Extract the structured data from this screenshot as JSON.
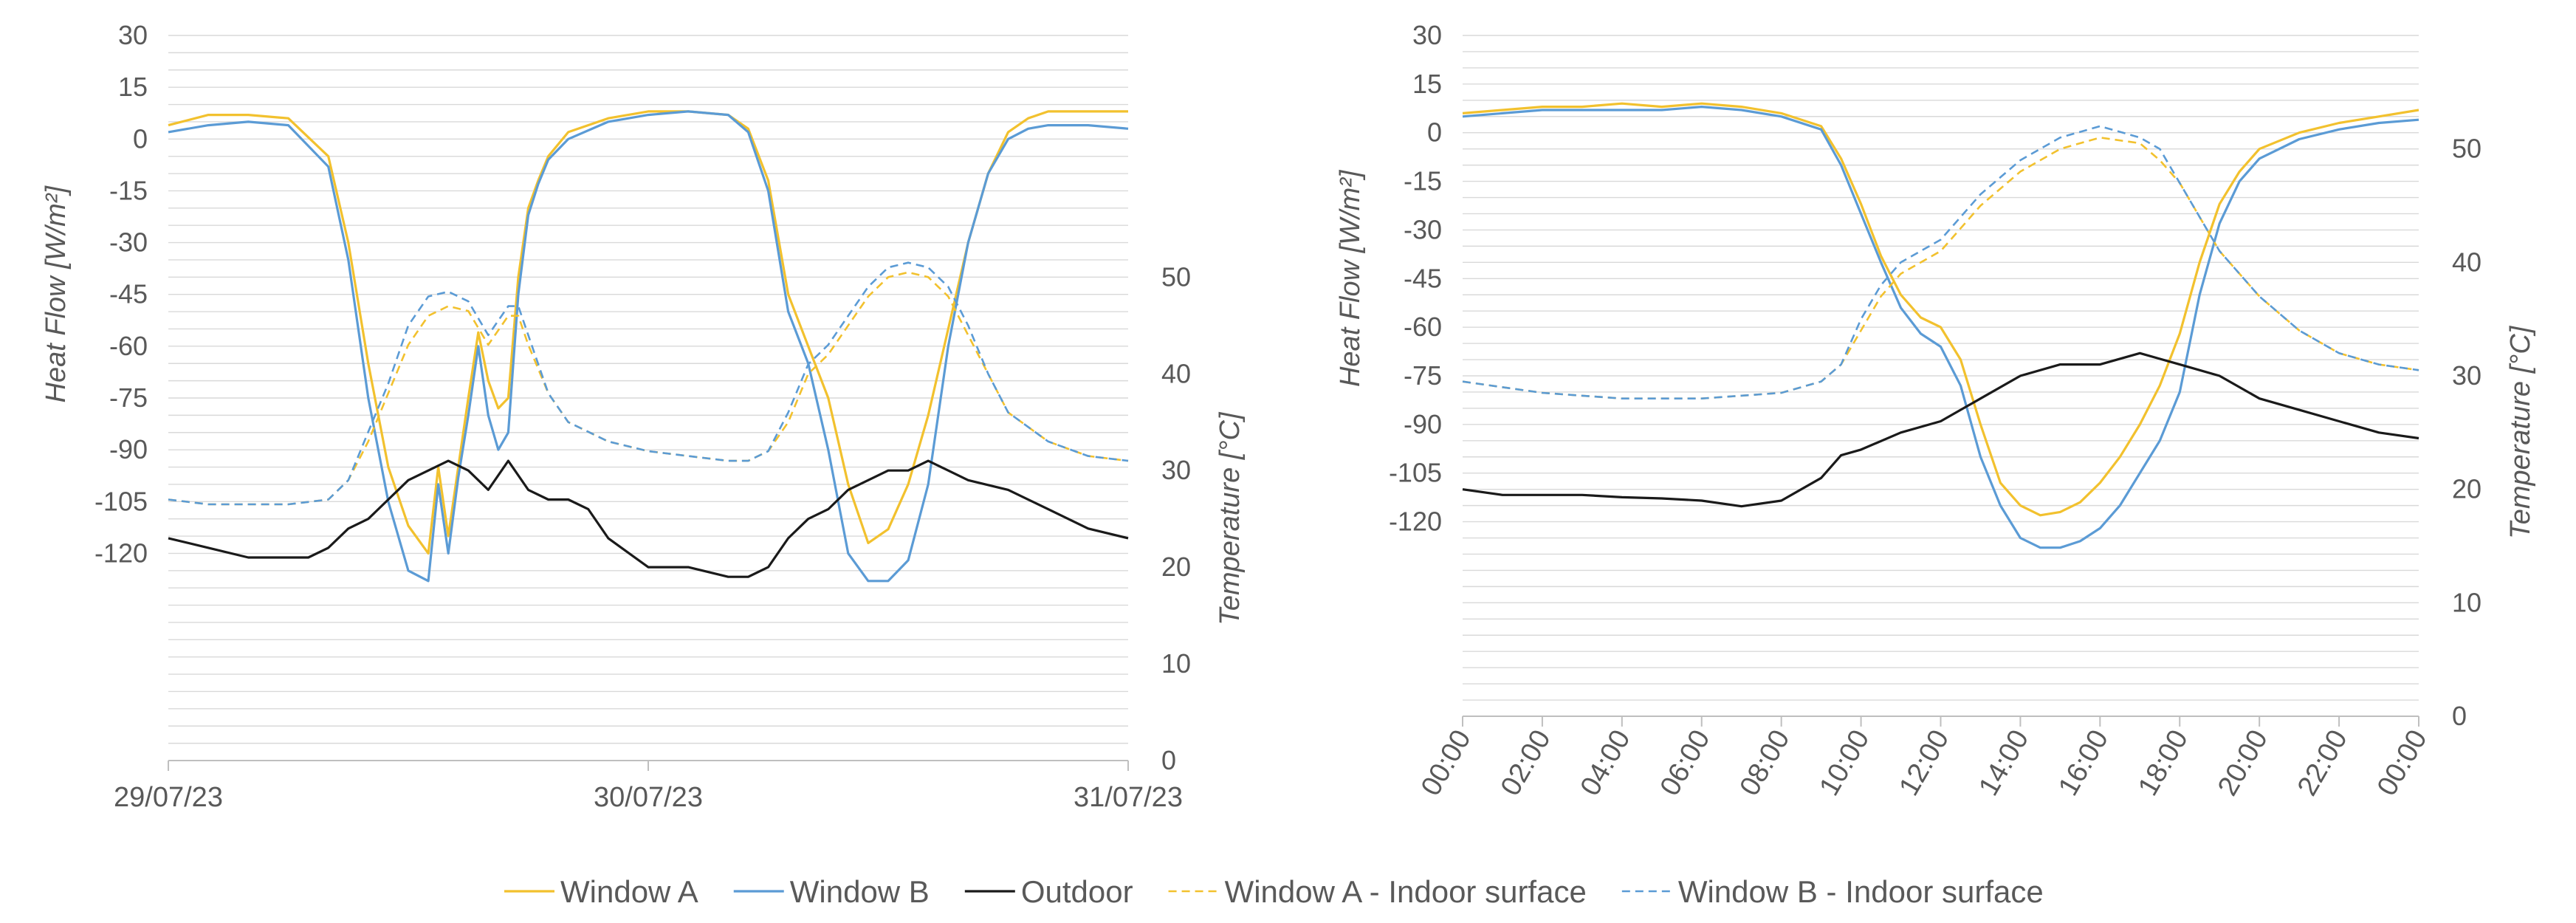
{
  "colors": {
    "window_a": "#F2C12E",
    "window_b": "#5B9BD5",
    "outdoor": "#1A1A1A",
    "grid": "#D9D9D9",
    "axis": "#BFBFBF",
    "text": "#595959"
  },
  "legend": {
    "placement": "bottom-center",
    "items": [
      {
        "label": "Window A",
        "color": "#F2C12E",
        "dashed": false
      },
      {
        "label": "Window B",
        "color": "#5B9BD5",
        "dashed": false
      },
      {
        "label": "Outdoor",
        "color": "#1A1A1A",
        "dashed": false
      },
      {
        "label": "Window A - Indoor surface",
        "color": "#F2C12E",
        "dashed": true
      },
      {
        "label": "Window B - Indoor surface",
        "color": "#5B9BD5",
        "dashed": true
      }
    ]
  },
  "chart_data": [
    {
      "type": "line",
      "ylabel": "Heat Flow [W/m²]",
      "y2label": "Temperature [°C]",
      "ylim": [
        -180,
        30
      ],
      "yticks": [
        30,
        15,
        0,
        -15,
        -30,
        -45,
        -60,
        -75,
        -90,
        -105,
        -120
      ],
      "y2lim": [
        0,
        75
      ],
      "y2ticks": [
        0,
        10,
        20,
        30,
        40,
        50
      ],
      "x_tick_labels": [
        "29/07/23",
        "30/07/23",
        "31/07/23"
      ],
      "xlim": [
        0,
        48
      ],
      "grid": true,
      "series": [
        {
          "name": "Window A",
          "axis": "left",
          "x": [
            0,
            2,
            4,
            6,
            8,
            9,
            10,
            11,
            12,
            13,
            13.5,
            14,
            14.5,
            15,
            15.5,
            16,
            16.5,
            17,
            17.5,
            18,
            18.5,
            19,
            20,
            22,
            24,
            26,
            28,
            29,
            30,
            31,
            32,
            33,
            34,
            35,
            36,
            37,
            38,
            39,
            40,
            41,
            42,
            43,
            44,
            46,
            48
          ],
          "y": [
            4,
            7,
            7,
            6,
            -5,
            -30,
            -65,
            -95,
            -112,
            -120,
            -95,
            -115,
            -95,
            -75,
            -56,
            -70,
            -78,
            -75,
            -40,
            -20,
            -12,
            -5,
            2,
            6,
            8,
            8,
            7,
            3,
            -12,
            -45,
            -60,
            -75,
            -100,
            -117,
            -113,
            -100,
            -80,
            -55,
            -30,
            -10,
            2,
            6,
            8,
            8,
            8
          ]
        },
        {
          "name": "Window B",
          "axis": "left",
          "x": [
            0,
            2,
            4,
            6,
            8,
            9,
            10,
            11,
            12,
            13,
            13.5,
            14,
            14.5,
            15,
            15.5,
            16,
            16.5,
            17,
            17.5,
            18,
            18.5,
            19,
            20,
            22,
            24,
            26,
            28,
            29,
            30,
            31,
            32,
            33,
            34,
            35,
            36,
            37,
            38,
            39,
            40,
            41,
            42,
            43,
            44,
            46,
            48
          ],
          "y": [
            2,
            4,
            5,
            4,
            -8,
            -35,
            -75,
            -105,
            -125,
            -128,
            -100,
            -120,
            -98,
            -80,
            -60,
            -80,
            -90,
            -85,
            -45,
            -22,
            -13,
            -6,
            0,
            5,
            7,
            8,
            7,
            2,
            -15,
            -50,
            -65,
            -90,
            -120,
            -128,
            -128,
            -122,
            -100,
            -60,
            -30,
            -10,
            0,
            3,
            4,
            4,
            3
          ]
        },
        {
          "name": "Outdoor",
          "axis": "right",
          "x": [
            0,
            2,
            4,
            6,
            7,
            8,
            9,
            10,
            11,
            12,
            13,
            14,
            15,
            16,
            17,
            18,
            19,
            20,
            21,
            22,
            24,
            26,
            28,
            29,
            30,
            31,
            32,
            33,
            34,
            35,
            36,
            37,
            38,
            39,
            40,
            42,
            44,
            46,
            48
          ],
          "y": [
            23,
            22,
            21,
            21,
            21,
            22,
            24,
            25,
            27,
            29,
            30,
            31,
            30,
            28,
            31,
            28,
            27,
            27,
            26,
            23,
            20,
            20,
            19,
            19,
            20,
            23,
            25,
            26,
            28,
            29,
            30,
            30,
            31,
            30,
            29,
            28,
            26,
            24,
            23
          ]
        },
        {
          "name": "Window A - Indoor surface",
          "axis": "right",
          "dashed": true,
          "x": [
            0,
            2,
            4,
            6,
            8,
            9,
            10,
            11,
            12,
            13,
            14,
            15,
            16,
            17,
            17.5,
            18,
            19,
            20,
            22,
            24,
            26,
            28,
            29,
            30,
            31,
            32,
            33,
            34,
            35,
            36,
            37,
            38,
            39,
            40,
            41,
            42,
            44,
            46,
            48
          ],
          "y": [
            27,
            26.5,
            26.5,
            26.5,
            27,
            29,
            33,
            38,
            43,
            46,
            47,
            46.5,
            43,
            46,
            46,
            43,
            38,
            35,
            33,
            32,
            31.5,
            31,
            31,
            32,
            35,
            40,
            42,
            45,
            48,
            50,
            50.5,
            50,
            48,
            44,
            40,
            36,
            33,
            31.5,
            31
          ]
        },
        {
          "name": "Window B - Indoor surface",
          "axis": "right",
          "dashed": true,
          "x": [
            0,
            2,
            4,
            6,
            8,
            9,
            10,
            11,
            12,
            13,
            14,
            15,
            16,
            17,
            17.5,
            18,
            19,
            20,
            22,
            24,
            26,
            28,
            29,
            30,
            31,
            32,
            33,
            34,
            35,
            36,
            37,
            38,
            39,
            40,
            41,
            42,
            44,
            46,
            48
          ],
          "y": [
            27,
            26.5,
            26.5,
            26.5,
            27,
            29,
            34,
            39,
            45,
            48,
            48.5,
            47.5,
            44,
            47,
            47,
            44,
            38,
            35,
            33,
            32,
            31.5,
            31,
            31,
            32,
            36,
            41,
            43,
            46,
            49,
            51,
            51.5,
            51,
            49,
            45,
            40,
            36,
            33,
            31.5,
            31
          ]
        }
      ]
    },
    {
      "type": "line",
      "ylabel": "Heat Flow [W/m²]",
      "y2label": "Temperature [°C]",
      "ylim": [
        -180,
        30
      ],
      "yticks": [
        30,
        15,
        0,
        -15,
        -30,
        -45,
        -60,
        -75,
        -90,
        -105,
        -120
      ],
      "y2lim": [
        0,
        60
      ],
      "y2ticks": [
        0,
        10,
        20,
        30,
        40,
        50
      ],
      "x_tick_labels": [
        "00:00",
        "02:00",
        "04:00",
        "06:00",
        "08:00",
        "10:00",
        "12:00",
        "14:00",
        "16:00",
        "18:00",
        "20:00",
        "22:00",
        "00:00"
      ],
      "xlim": [
        0,
        24
      ],
      "grid": true,
      "series": [
        {
          "name": "Window A",
          "axis": "left",
          "x": [
            0,
            1,
            2,
            3,
            4,
            5,
            6,
            7,
            8,
            9,
            9.5,
            10,
            10.5,
            11,
            11.5,
            12,
            12.5,
            13,
            13.5,
            14,
            14.5,
            15,
            15.5,
            16,
            16.5,
            17,
            17.5,
            18,
            18.5,
            19,
            19.5,
            20,
            21,
            22,
            23,
            24
          ],
          "y": [
            6,
            7,
            8,
            8,
            9,
            8,
            9,
            8,
            6,
            2,
            -8,
            -22,
            -38,
            -50,
            -57,
            -60,
            -70,
            -90,
            -108,
            -115,
            -118,
            -117,
            -114,
            -108,
            -100,
            -90,
            -78,
            -62,
            -40,
            -22,
            -12,
            -5,
            0,
            3,
            5,
            7
          ]
        },
        {
          "name": "Window B",
          "axis": "left",
          "x": [
            0,
            1,
            2,
            3,
            4,
            5,
            6,
            7,
            8,
            9,
            9.5,
            10,
            10.5,
            11,
            11.5,
            12,
            12.5,
            13,
            13.5,
            14,
            14.5,
            15,
            15.5,
            16,
            16.5,
            17,
            17.5,
            18,
            18.5,
            19,
            19.5,
            20,
            21,
            22,
            23,
            24
          ],
          "y": [
            5,
            6,
            7,
            7,
            7,
            7,
            8,
            7,
            5,
            1,
            -10,
            -25,
            -40,
            -54,
            -62,
            -66,
            -78,
            -100,
            -115,
            -125,
            -128,
            -128,
            -126,
            -122,
            -115,
            -105,
            -95,
            -80,
            -50,
            -28,
            -15,
            -8,
            -2,
            1,
            3,
            4
          ]
        },
        {
          "name": "Outdoor",
          "axis": "right",
          "x": [
            0,
            1,
            2,
            3,
            4,
            5,
            6,
            7,
            8,
            9,
            9.5,
            10,
            11,
            12,
            13,
            14,
            15,
            16,
            17,
            18,
            19,
            20,
            21,
            22,
            23,
            24
          ],
          "y": [
            20,
            19.5,
            19.5,
            19.5,
            19.3,
            19.2,
            19,
            18.5,
            19,
            21,
            23,
            23.5,
            25,
            26,
            28,
            30,
            31,
            31,
            32,
            31,
            30,
            28,
            27,
            26,
            25,
            24.5
          ]
        },
        {
          "name": "Window A - Indoor surface",
          "axis": "right",
          "dashed": true,
          "x": [
            0,
            2,
            4,
            6,
            8,
            9,
            9.5,
            10,
            10.5,
            11,
            12,
            13,
            14,
            15,
            16,
            17,
            17.5,
            18,
            19,
            20,
            21,
            22,
            23,
            24
          ],
          "y": [
            29.5,
            28.5,
            28,
            28,
            28.5,
            29.5,
            31,
            34,
            37,
            39,
            41,
            45,
            48,
            50,
            51,
            50.5,
            49,
            47,
            41,
            37,
            34,
            32,
            31,
            30.5
          ]
        },
        {
          "name": "Window B - Indoor surface",
          "axis": "right",
          "dashed": true,
          "x": [
            0,
            2,
            4,
            6,
            8,
            9,
            9.5,
            10,
            10.5,
            11,
            12,
            13,
            14,
            15,
            16,
            17,
            17.5,
            18,
            19,
            20,
            21,
            22,
            23,
            24
          ],
          "y": [
            29.5,
            28.5,
            28,
            28,
            28.5,
            29.5,
            31,
            35,
            38,
            40,
            42,
            46,
            49,
            51,
            52,
            51,
            50,
            47,
            41,
            37,
            34,
            32,
            31,
            30.5
          ]
        }
      ]
    }
  ]
}
